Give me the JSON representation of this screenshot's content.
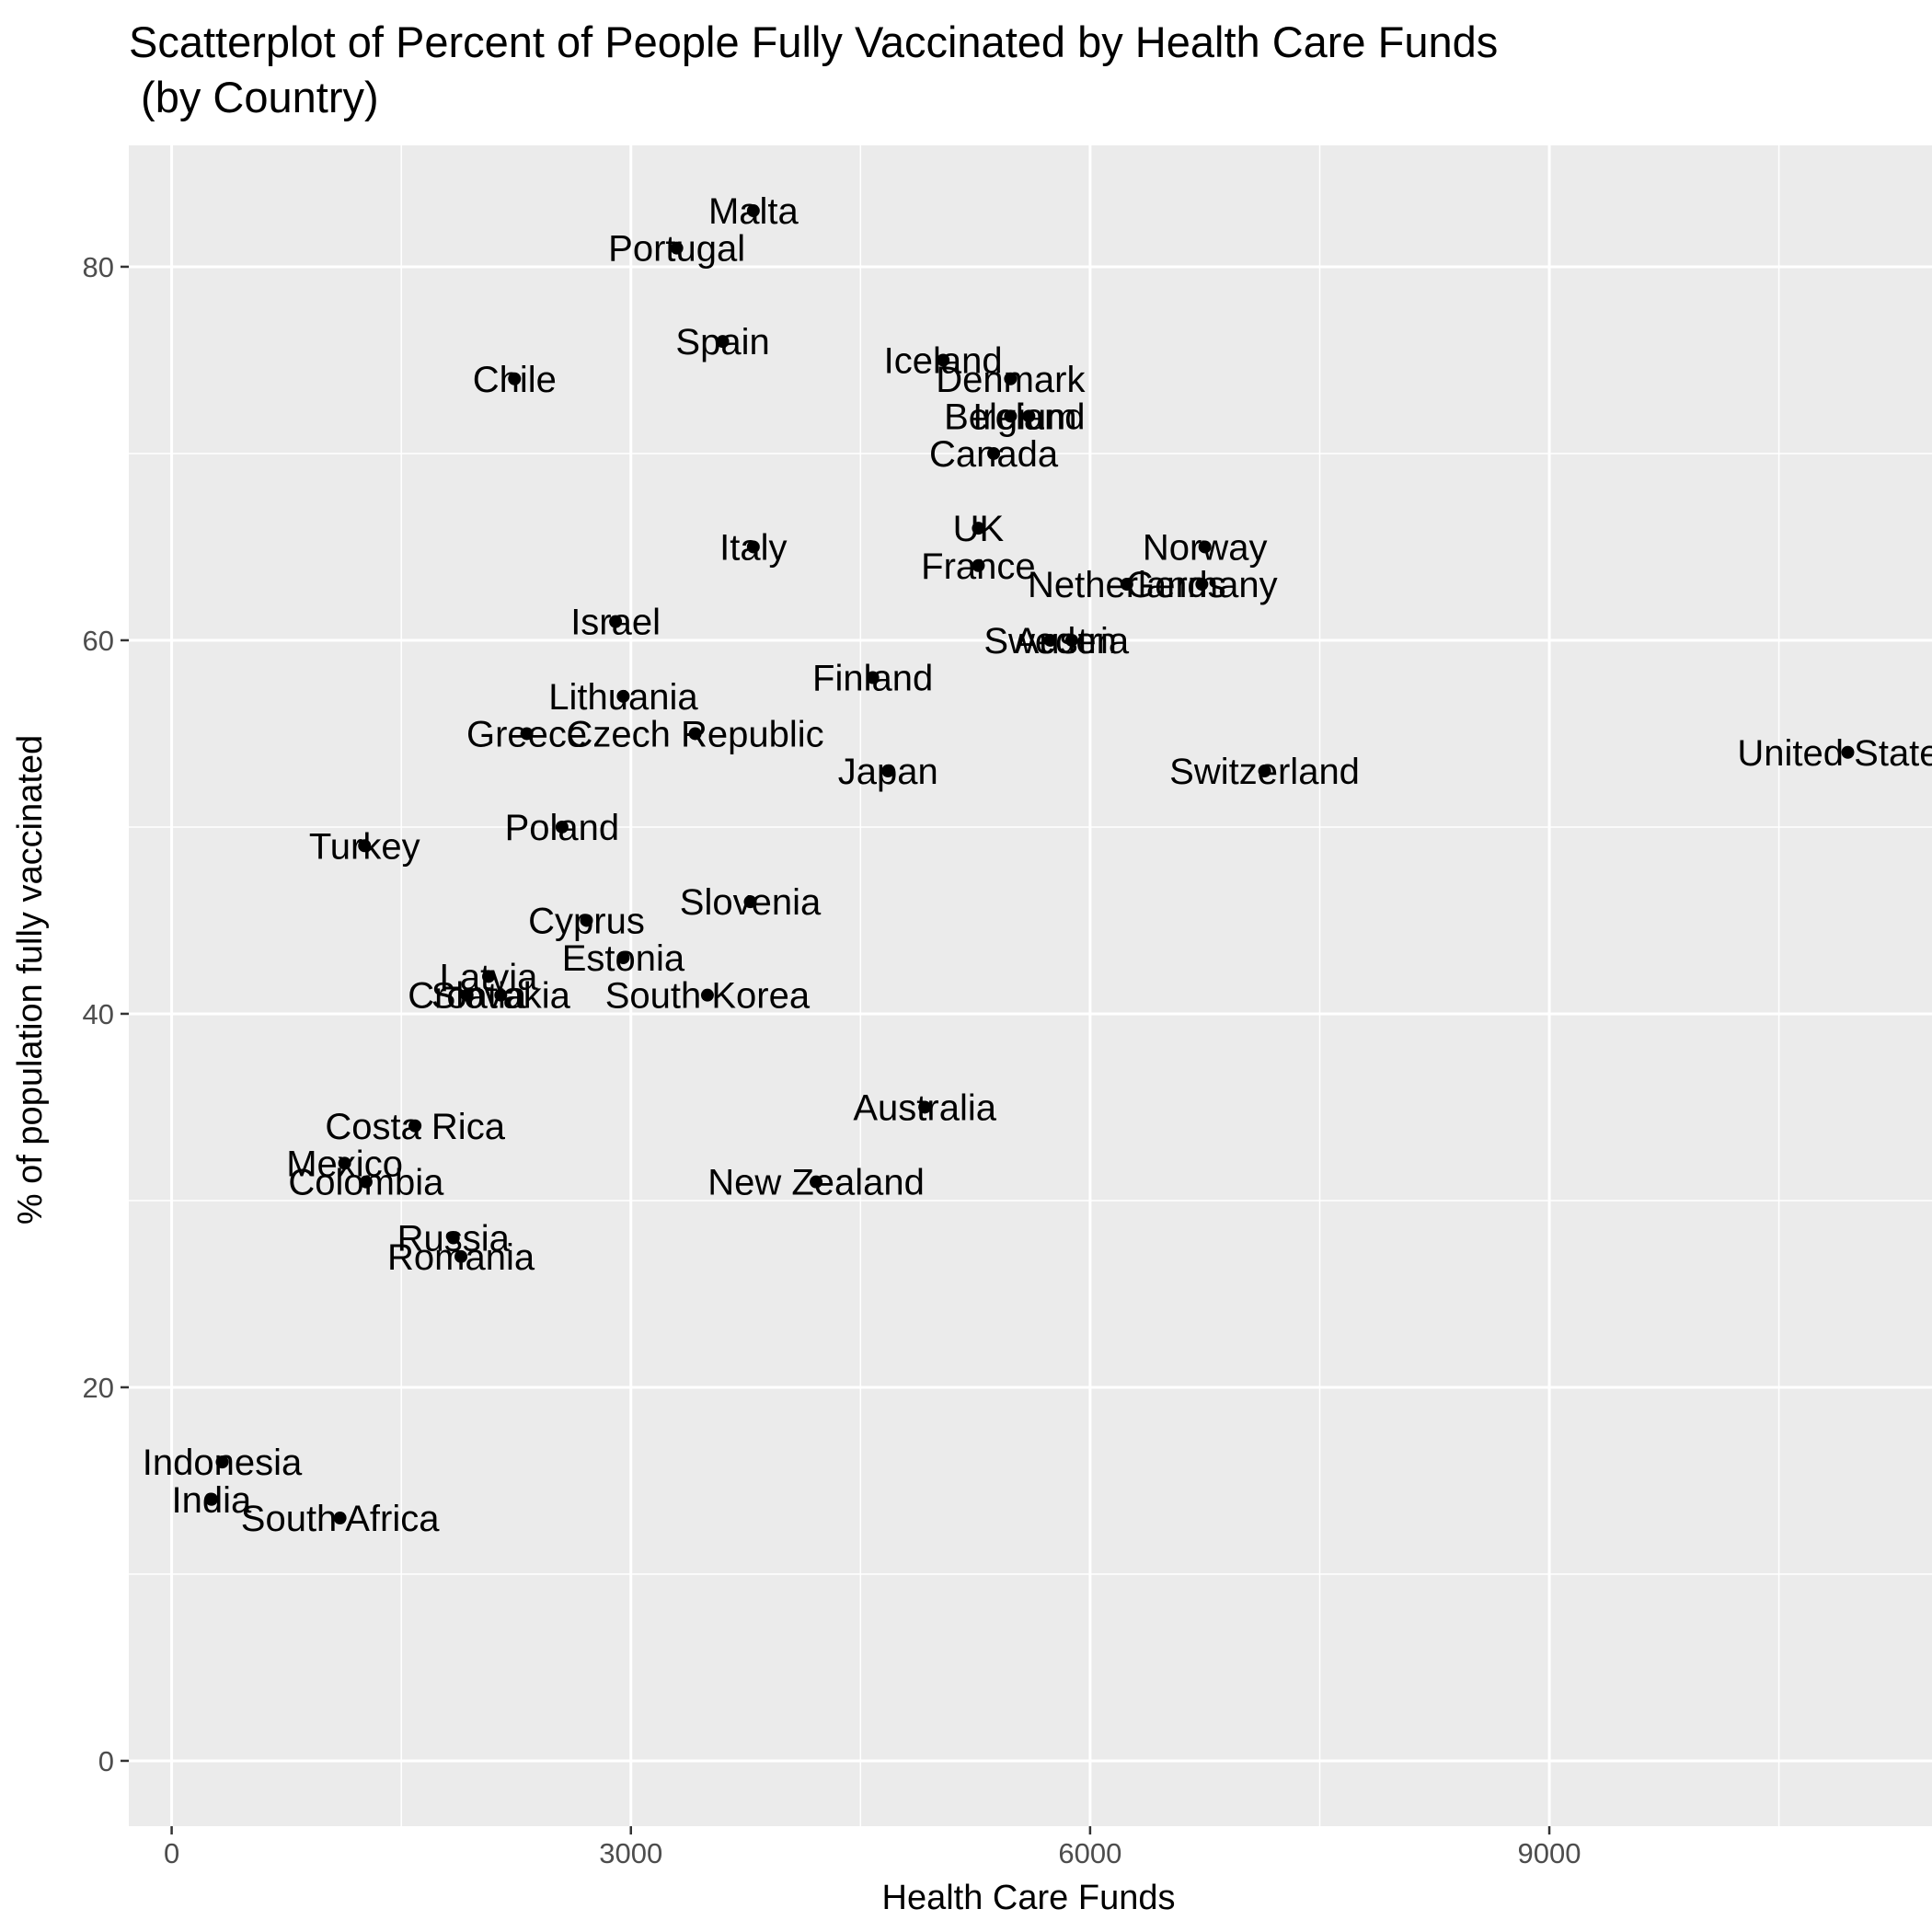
{
  "chart_data": {
    "type": "scatter",
    "title_line1": "Scatterplot of Percent of People Fully Vaccinated by Health Care Funds",
    "title_line2": " (by Country)",
    "xlabel": "Health Care Funds",
    "ylabel": "% of population fully vaccinated",
    "xlim": [
      -280,
      11500
    ],
    "ylim": [
      -3.5,
      86.5
    ],
    "xticks": [
      0,
      3000,
      6000,
      9000
    ],
    "yticks": [
      0,
      20,
      40,
      60,
      80
    ],
    "grid": true,
    "legend": "none",
    "colors": {
      "panel": "#ebebeb",
      "grid": "#ffffff",
      "point": "#000000",
      "tick_text": "#4d4d4d"
    },
    "points": [
      {
        "label": "Malta",
        "x": 3800,
        "y": 83
      },
      {
        "label": "Portugal",
        "x": 3300,
        "y": 81
      },
      {
        "label": "Spain",
        "x": 3600,
        "y": 76
      },
      {
        "label": "Chile",
        "x": 2240,
        "y": 74
      },
      {
        "label": "Iceland",
        "x": 5040,
        "y": 75
      },
      {
        "label": "Denmark",
        "x": 5480,
        "y": 74
      },
      {
        "label": "Ireland",
        "x": 5600,
        "y": 72
      },
      {
        "label": "Belgium",
        "x": 5480,
        "y": 72
      },
      {
        "label": "Canada",
        "x": 5370,
        "y": 70
      },
      {
        "label": "UK",
        "x": 5270,
        "y": 66
      },
      {
        "label": "Italy",
        "x": 3800,
        "y": 65
      },
      {
        "label": "Norway",
        "x": 6750,
        "y": 65
      },
      {
        "label": "France",
        "x": 5270,
        "y": 64
      },
      {
        "label": "Netherlands",
        "x": 6240,
        "y": 63
      },
      {
        "label": "Germany",
        "x": 6730,
        "y": 63
      },
      {
        "label": "Israel",
        "x": 2900,
        "y": 61
      },
      {
        "label": "Sweden",
        "x": 5740,
        "y": 60
      },
      {
        "label": "Austria",
        "x": 5880,
        "y": 60
      },
      {
        "label": "Finland",
        "x": 4580,
        "y": 58
      },
      {
        "label": "Lithuania",
        "x": 2950,
        "y": 57
      },
      {
        "label": "Greece",
        "x": 2320,
        "y": 55
      },
      {
        "label": "Czech Republic",
        "x": 3420,
        "y": 55
      },
      {
        "label": "Japan",
        "x": 4680,
        "y": 53
      },
      {
        "label": "Switzerland",
        "x": 7140,
        "y": 53
      },
      {
        "label": "United States",
        "x": 10950,
        "y": 54
      },
      {
        "label": "Poland",
        "x": 2550,
        "y": 50
      },
      {
        "label": "Turkey",
        "x": 1260,
        "y": 49
      },
      {
        "label": "Slovenia",
        "x": 3780,
        "y": 46
      },
      {
        "label": "Cyprus",
        "x": 2710,
        "y": 45
      },
      {
        "label": "Estonia",
        "x": 2950,
        "y": 43
      },
      {
        "label": "Latvia",
        "x": 2070,
        "y": 42
      },
      {
        "label": "Croatia",
        "x": 1930,
        "y": 41
      },
      {
        "label": "Slovakia",
        "x": 2150,
        "y": 41
      },
      {
        "label": "South Korea",
        "x": 3500,
        "y": 41
      },
      {
        "label": "Australia",
        "x": 4920,
        "y": 35
      },
      {
        "label": "Costa Rica",
        "x": 1590,
        "y": 34
      },
      {
        "label": "Mexico",
        "x": 1130,
        "y": 32
      },
      {
        "label": "Colombia",
        "x": 1270,
        "y": 31
      },
      {
        "label": "New Zealand",
        "x": 4210,
        "y": 31
      },
      {
        "label": "Russia",
        "x": 1840,
        "y": 28
      },
      {
        "label": "Romania",
        "x": 1890,
        "y": 27
      },
      {
        "label": "Indonesia",
        "x": 330,
        "y": 16
      },
      {
        "label": "India",
        "x": 260,
        "y": 14
      },
      {
        "label": "South Africa",
        "x": 1100,
        "y": 13
      }
    ]
  }
}
